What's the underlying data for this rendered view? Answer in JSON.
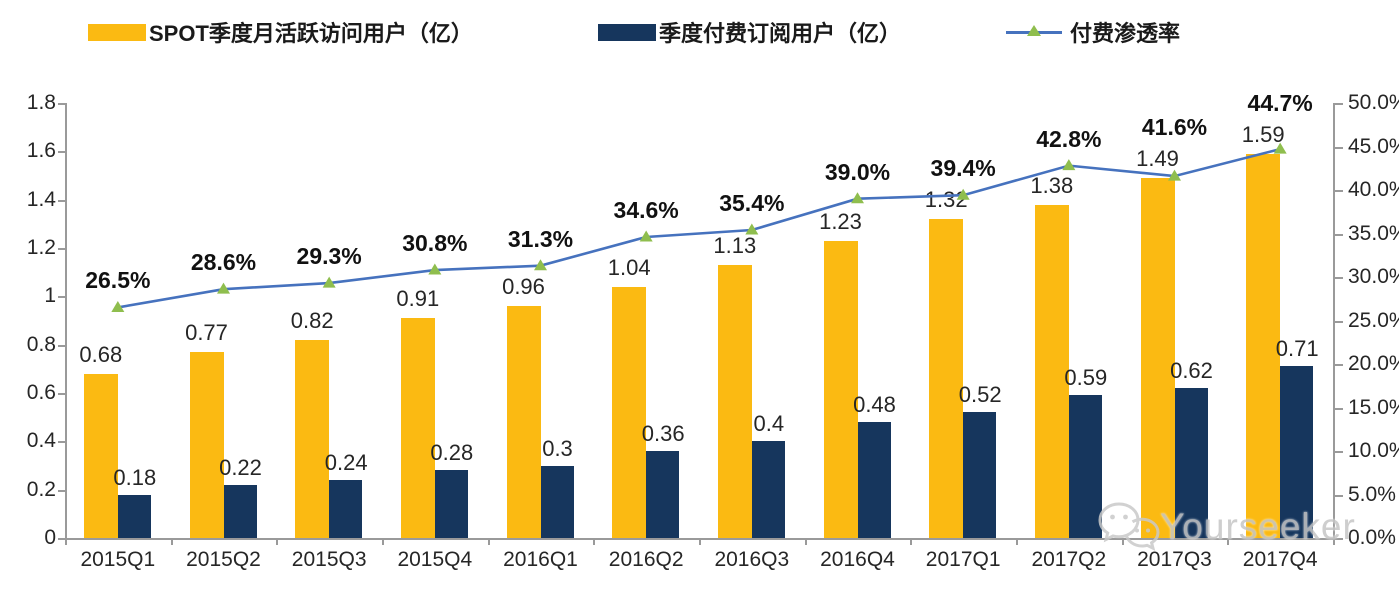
{
  "watermark": {
    "text": "Yourseeker",
    "icon": "wechat-icon"
  },
  "chart_data": {
    "type": "bar",
    "subtype": "grouped-bars-with-line-overlay",
    "title": "",
    "categories": [
      "2015Q1",
      "2015Q2",
      "2015Q3",
      "2015Q4",
      "2016Q1",
      "2016Q2",
      "2016Q3",
      "2016Q4",
      "2017Q1",
      "2017Q2",
      "2017Q3",
      "2017Q4"
    ],
    "series": [
      {
        "name": "SPOT季度月活跃访问用户（亿）",
        "type": "bar",
        "axis": "left",
        "color": "#FBBA12",
        "values": [
          0.68,
          0.77,
          0.82,
          0.91,
          0.96,
          1.04,
          1.13,
          1.23,
          1.32,
          1.38,
          1.49,
          1.59
        ]
      },
      {
        "name": "季度付费订阅用户（亿）",
        "type": "bar",
        "axis": "left",
        "color": "#16365D",
        "values": [
          0.18,
          0.22,
          0.24,
          0.28,
          0.3,
          0.36,
          0.4,
          0.48,
          0.52,
          0.59,
          0.62,
          0.71
        ]
      },
      {
        "name": "付费渗透率",
        "type": "line",
        "axis": "right",
        "color": "#4672BE",
        "marker": "triangle",
        "marker_color": "#8FBE4E",
        "values": [
          26.5,
          28.6,
          29.3,
          30.8,
          31.3,
          34.6,
          35.4,
          39.0,
          39.4,
          42.8,
          41.6,
          44.7
        ]
      }
    ],
    "left_axis": {
      "min": 0,
      "max": 1.8,
      "step": 0.2
    },
    "right_axis": {
      "min": 0,
      "max": 50,
      "step": 5,
      "suffix": "%"
    },
    "grid": false,
    "legend_position": "top",
    "data_labels": true
  }
}
